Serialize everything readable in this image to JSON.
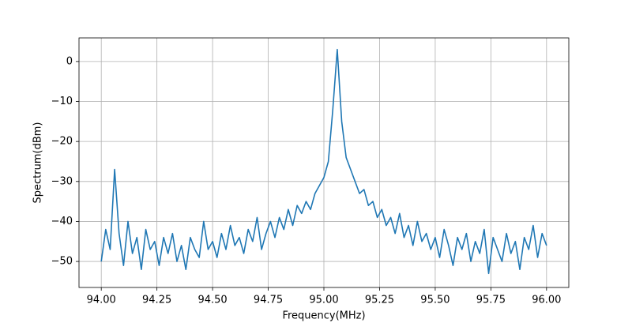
{
  "chart_data": {
    "type": "line",
    "xlabel": "Frequency(MHz)",
    "ylabel": "Spectrum(dBm)",
    "x": [
      94.0,
      94.02,
      94.04,
      94.06,
      94.08,
      94.1,
      94.12,
      94.14,
      94.16,
      94.18,
      94.2,
      94.22,
      94.24,
      94.26,
      94.28,
      94.3,
      94.32,
      94.34,
      94.36,
      94.38,
      94.4,
      94.42,
      94.44,
      94.46,
      94.48,
      94.5,
      94.52,
      94.54,
      94.56,
      94.58,
      94.6,
      94.62,
      94.64,
      94.66,
      94.68,
      94.7,
      94.72,
      94.74,
      94.76,
      94.78,
      94.8,
      94.82,
      94.84,
      94.86,
      94.88,
      94.9,
      94.92,
      94.94,
      94.96,
      94.98,
      95.0,
      95.02,
      95.04,
      95.06,
      95.08,
      95.1,
      95.12,
      95.14,
      95.16,
      95.18,
      95.2,
      95.22,
      95.24,
      95.26,
      95.28,
      95.3,
      95.32,
      95.34,
      95.36,
      95.38,
      95.4,
      95.42,
      95.44,
      95.46,
      95.48,
      95.5,
      95.52,
      95.54,
      95.56,
      95.58,
      95.6,
      95.62,
      95.64,
      95.66,
      95.68,
      95.7,
      95.72,
      95.74,
      95.76,
      95.78,
      95.8,
      95.82,
      95.84,
      95.86,
      95.88,
      95.9,
      95.92,
      95.94,
      95.96,
      95.98,
      96.0
    ],
    "series": [
      {
        "color": "#1f77b4",
        "values": [
          -50,
          -42,
          -47,
          -27,
          -43,
          -51,
          -40,
          -48,
          -44,
          -52,
          -42,
          -47,
          -45,
          -51,
          -44,
          -48,
          -43,
          -50,
          -46,
          -52,
          -44,
          -47,
          -49,
          -40,
          -47,
          -45,
          -49,
          -43,
          -47,
          -41,
          -46,
          -44,
          -48,
          -42,
          -45,
          -39,
          -47,
          -43,
          -40,
          -44,
          -39,
          -42,
          -37,
          -41,
          -36,
          -38,
          -35,
          -37,
          -33,
          -31,
          -29,
          -25,
          -12,
          3,
          -15,
          -24,
          -27,
          -30,
          -33,
          -32,
          -36,
          -35,
          -39,
          -37,
          -41,
          -39,
          -43,
          -38,
          -44,
          -41,
          -46,
          -40,
          -45,
          -43,
          -47,
          -44,
          -49,
          -42,
          -46,
          -51,
          -44,
          -47,
          -43,
          -50,
          -45,
          -48,
          -42,
          -53,
          -44,
          -47,
          -50,
          -43,
          -48,
          -45,
          -52,
          -44,
          -47,
          -41,
          -49,
          -43,
          -46
        ]
      }
    ],
    "xlim": [
      93.9,
      96.1
    ],
    "ylim": [
      -56.5,
      5.9
    ],
    "xticks": [
      {
        "value": 94.0,
        "label": "94.00"
      },
      {
        "value": 94.25,
        "label": "94.25"
      },
      {
        "value": 94.5,
        "label": "94.50"
      },
      {
        "value": 94.75,
        "label": "94.75"
      },
      {
        "value": 95.0,
        "label": "95.00"
      },
      {
        "value": 95.25,
        "label": "95.25"
      },
      {
        "value": 95.5,
        "label": "95.50"
      },
      {
        "value": 95.75,
        "label": "95.75"
      },
      {
        "value": 96.0,
        "label": "96.00"
      }
    ],
    "yticks": [
      {
        "value": -50,
        "label": "−50"
      },
      {
        "value": -40,
        "label": "−40"
      },
      {
        "value": -30,
        "label": "−30"
      },
      {
        "value": -20,
        "label": "−20"
      },
      {
        "value": -10,
        "label": "−10"
      },
      0
    ],
    "grid": true
  }
}
